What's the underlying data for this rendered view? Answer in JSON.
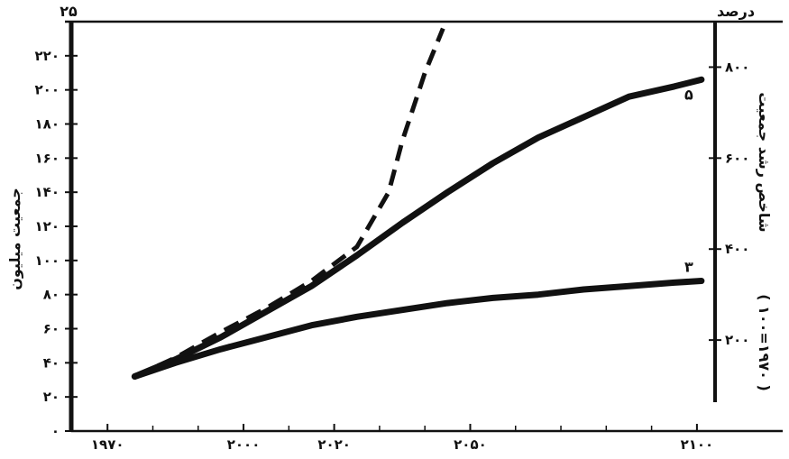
{
  "chart_data": {
    "type": "line",
    "corner_left_label": "۲۵",
    "corner_right_label": "درصد",
    "left_axis_title": "جمعیت میلیون",
    "right_axis_title": "شاخص رشد جمعیت",
    "right_axis_subtitle": "( ۱۰۰=۱۹۷۰ )",
    "x_ticks": [
      {
        "value": 1970,
        "label": "۱۹۷۰"
      },
      {
        "value": 2000,
        "label": "۲۰۰۰"
      },
      {
        "value": 2020,
        "label": "۲۰۲۰"
      },
      {
        "value": 2050,
        "label": "۲۰۵۰"
      },
      {
        "value": 2100,
        "label": "۲۱۰۰"
      }
    ],
    "y_left_ticks": [
      {
        "value": 0,
        "label": "۰"
      },
      {
        "value": 20,
        "label": "۲۰"
      },
      {
        "value": 40,
        "label": "۴۰"
      },
      {
        "value": 60,
        "label": "۶۰"
      },
      {
        "value": 80,
        "label": "۸۰"
      },
      {
        "value": 100,
        "label": "۱۰۰"
      },
      {
        "value": 120,
        "label": "۱۲۰"
      },
      {
        "value": 140,
        "label": "۱۴۰"
      },
      {
        "value": 160,
        "label": "۱۶۰"
      },
      {
        "value": 180,
        "label": "۱۸۰"
      },
      {
        "value": 200,
        "label": "۲۰۰"
      },
      {
        "value": 220,
        "label": "۲۲۰"
      }
    ],
    "y_right_ticks": [
      {
        "value": 200,
        "label": "۲۰۰"
      },
      {
        "value": 400,
        "label": "۴۰۰"
      },
      {
        "value": 600,
        "label": "۶۰۰"
      },
      {
        "value": 800,
        "label": "۸۰۰"
      }
    ],
    "xlim": [
      1962,
      2104
    ],
    "ylim": [
      0,
      240
    ],
    "series": [
      {
        "name": "۵",
        "style": "solid",
        "x": [
          1976,
          1985,
          1995,
          2005,
          2015,
          2025,
          2035,
          2045,
          2055,
          2065,
          2075,
          2085,
          2095,
          2101
        ],
        "y": [
          32,
          42,
          55,
          70,
          85,
          103,
          122,
          140,
          157,
          172,
          184,
          196,
          202,
          206
        ]
      },
      {
        "name": "۳",
        "style": "solid",
        "x": [
          1976,
          1985,
          1995,
          2005,
          2015,
          2025,
          2035,
          2045,
          2055,
          2065,
          2075,
          2085,
          2095,
          2101
        ],
        "y": [
          32,
          40,
          48,
          55,
          62,
          67,
          71,
          75,
          78,
          80,
          83,
          85,
          87,
          88
        ]
      },
      {
        "name": "",
        "style": "dashed",
        "x": [
          1976,
          1985,
          1995,
          2005,
          2015,
          2025,
          2032,
          2035,
          2040,
          2044
        ],
        "y": [
          32,
          43,
          58,
          72,
          88,
          108,
          140,
          170,
          210,
          236
        ]
      }
    ]
  }
}
